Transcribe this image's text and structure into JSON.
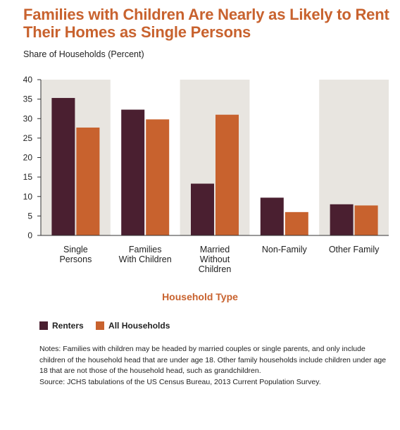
{
  "title_line1": "Families with Children Are Nearly as Likely to Rent",
  "title_line2": "Their Homes as Single Persons",
  "colors": {
    "renters": "#4a1f30",
    "all_households": "#c8622e",
    "band": "#e8e5e0",
    "title": "#c8622e"
  },
  "chart_data": {
    "type": "bar",
    "title": "Families with Children Are Nearly as Likely to Rent Their Homes as Single Persons",
    "ylabel": "Share of Households (Percent)",
    "xlabel": "Household Type",
    "ylim": [
      0,
      40
    ],
    "yticks": [
      0,
      5,
      10,
      15,
      20,
      25,
      30,
      35,
      40
    ],
    "categories": [
      [
        "Single",
        "Persons"
      ],
      [
        "Families",
        "With Children"
      ],
      [
        "Married",
        "Without",
        "Children"
      ],
      [
        "Non-Family"
      ],
      [
        "Other Family"
      ]
    ],
    "series": [
      {
        "name": "Renters",
        "values": [
          35.3,
          32.3,
          13.3,
          9.7,
          8.0
        ]
      },
      {
        "name": "All Households",
        "values": [
          27.7,
          29.8,
          31.0,
          6.0,
          7.7
        ]
      }
    ],
    "legend_position": "bottom-left",
    "grid": false
  },
  "notes": {
    "line1": "Notes: Families with children may be headed by married couples or single parents, and only include children of the household head that are under age 18. Other family households include children under age 18 that are not those of the household head, such as grandchildren.",
    "line2": "Source: JCHS tabulations of the US Census Bureau, 2013 Current Population Survey."
  }
}
